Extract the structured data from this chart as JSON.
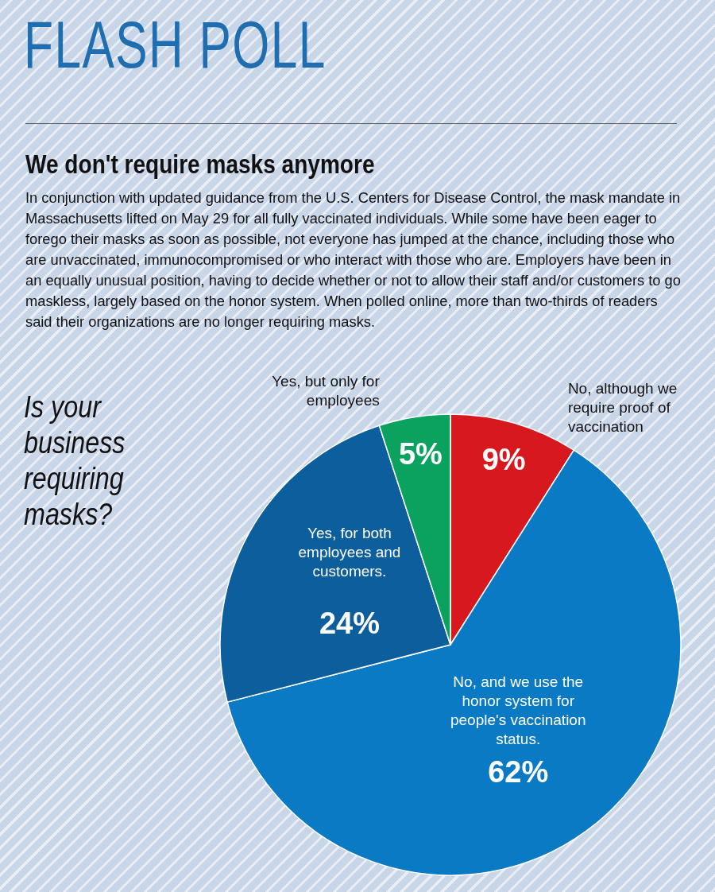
{
  "chart_data": {
    "type": "pie",
    "title": "FLASH POLL",
    "subtitle": "We don't require masks anymore",
    "annotations": [
      "In conjunction with updated guidance from the U.S. Centers for Disease Control, the mask mandate in Massachusetts lifted on May 29 for all fully vaccinated individuals. While some have been eager to forego their masks as soon as possible, not everyone has jumped at the chance, including those who are unvaccinated, immunocompromised or who interact with those who are. Employers have been in an equally unusual position, having to decide whether or not to allow their staff and/or customers to go maskless, largely based on the honor system. When polled online, more than two-thirds of readers said their organizations are no longer requiring masks.",
      "Is your business requiring masks?"
    ],
    "categories": [
      "No, although we require proof of vaccination",
      "No, and we use the honor system for people's vaccination status.",
      "Yes, for both employees and customers.",
      "Yes, but only for employees"
    ],
    "values": [
      9,
      62,
      24,
      5
    ],
    "colors": [
      "#d7191f",
      "#0a7ac5",
      "#0d5e9c",
      "#0aa25e"
    ],
    "value_labels": [
      "9%",
      "62%",
      "24%",
      "5%"
    ]
  }
}
